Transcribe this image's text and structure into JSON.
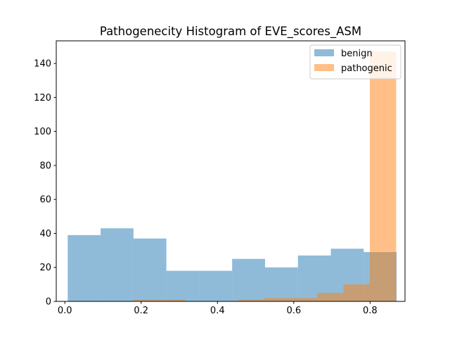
{
  "chart_data": {
    "type": "bar",
    "subtype": "histogram-overlay",
    "title": "Pathogenecity Histogram of EVE_scores_ASM",
    "xlabel": "",
    "ylabel": "",
    "xlim": [
      -0.0225,
      0.8915
    ],
    "ylim": [
      0,
      153.3
    ],
    "xticks": [
      0.0,
      0.2,
      0.4,
      0.6,
      0.8
    ],
    "xtick_labels": [
      "0.0",
      "0.2",
      "0.4",
      "0.6",
      "0.8"
    ],
    "yticks": [
      0,
      20,
      40,
      60,
      80,
      100,
      120,
      140
    ],
    "ytick_labels": [
      "0",
      "20",
      "40",
      "60",
      "80",
      "100",
      "120",
      "140"
    ],
    "grid": false,
    "legend_position": "top-right",
    "series": [
      {
        "name": "benign",
        "color": "#1f77b4",
        "alpha": 0.5,
        "bin_edges": [
          0.0075,
          0.0937,
          0.1799,
          0.2661,
          0.3523,
          0.4385,
          0.5247,
          0.6109,
          0.6971,
          0.7833,
          0.8695
        ],
        "counts": [
          39,
          43,
          37,
          18,
          18,
          25,
          20,
          27,
          31,
          29
        ]
      },
      {
        "name": "pathogenic",
        "color": "#ff7f0e",
        "alpha": 0.5,
        "bin_edges": [
          0.1783,
          0.2473,
          0.3163,
          0.3853,
          0.4543,
          0.5233,
          0.5923,
          0.6613,
          0.7303,
          0.7993,
          0.8683
        ],
        "counts": [
          1,
          1,
          0,
          0,
          1,
          2,
          2,
          5,
          10,
          147
        ]
      }
    ]
  }
}
